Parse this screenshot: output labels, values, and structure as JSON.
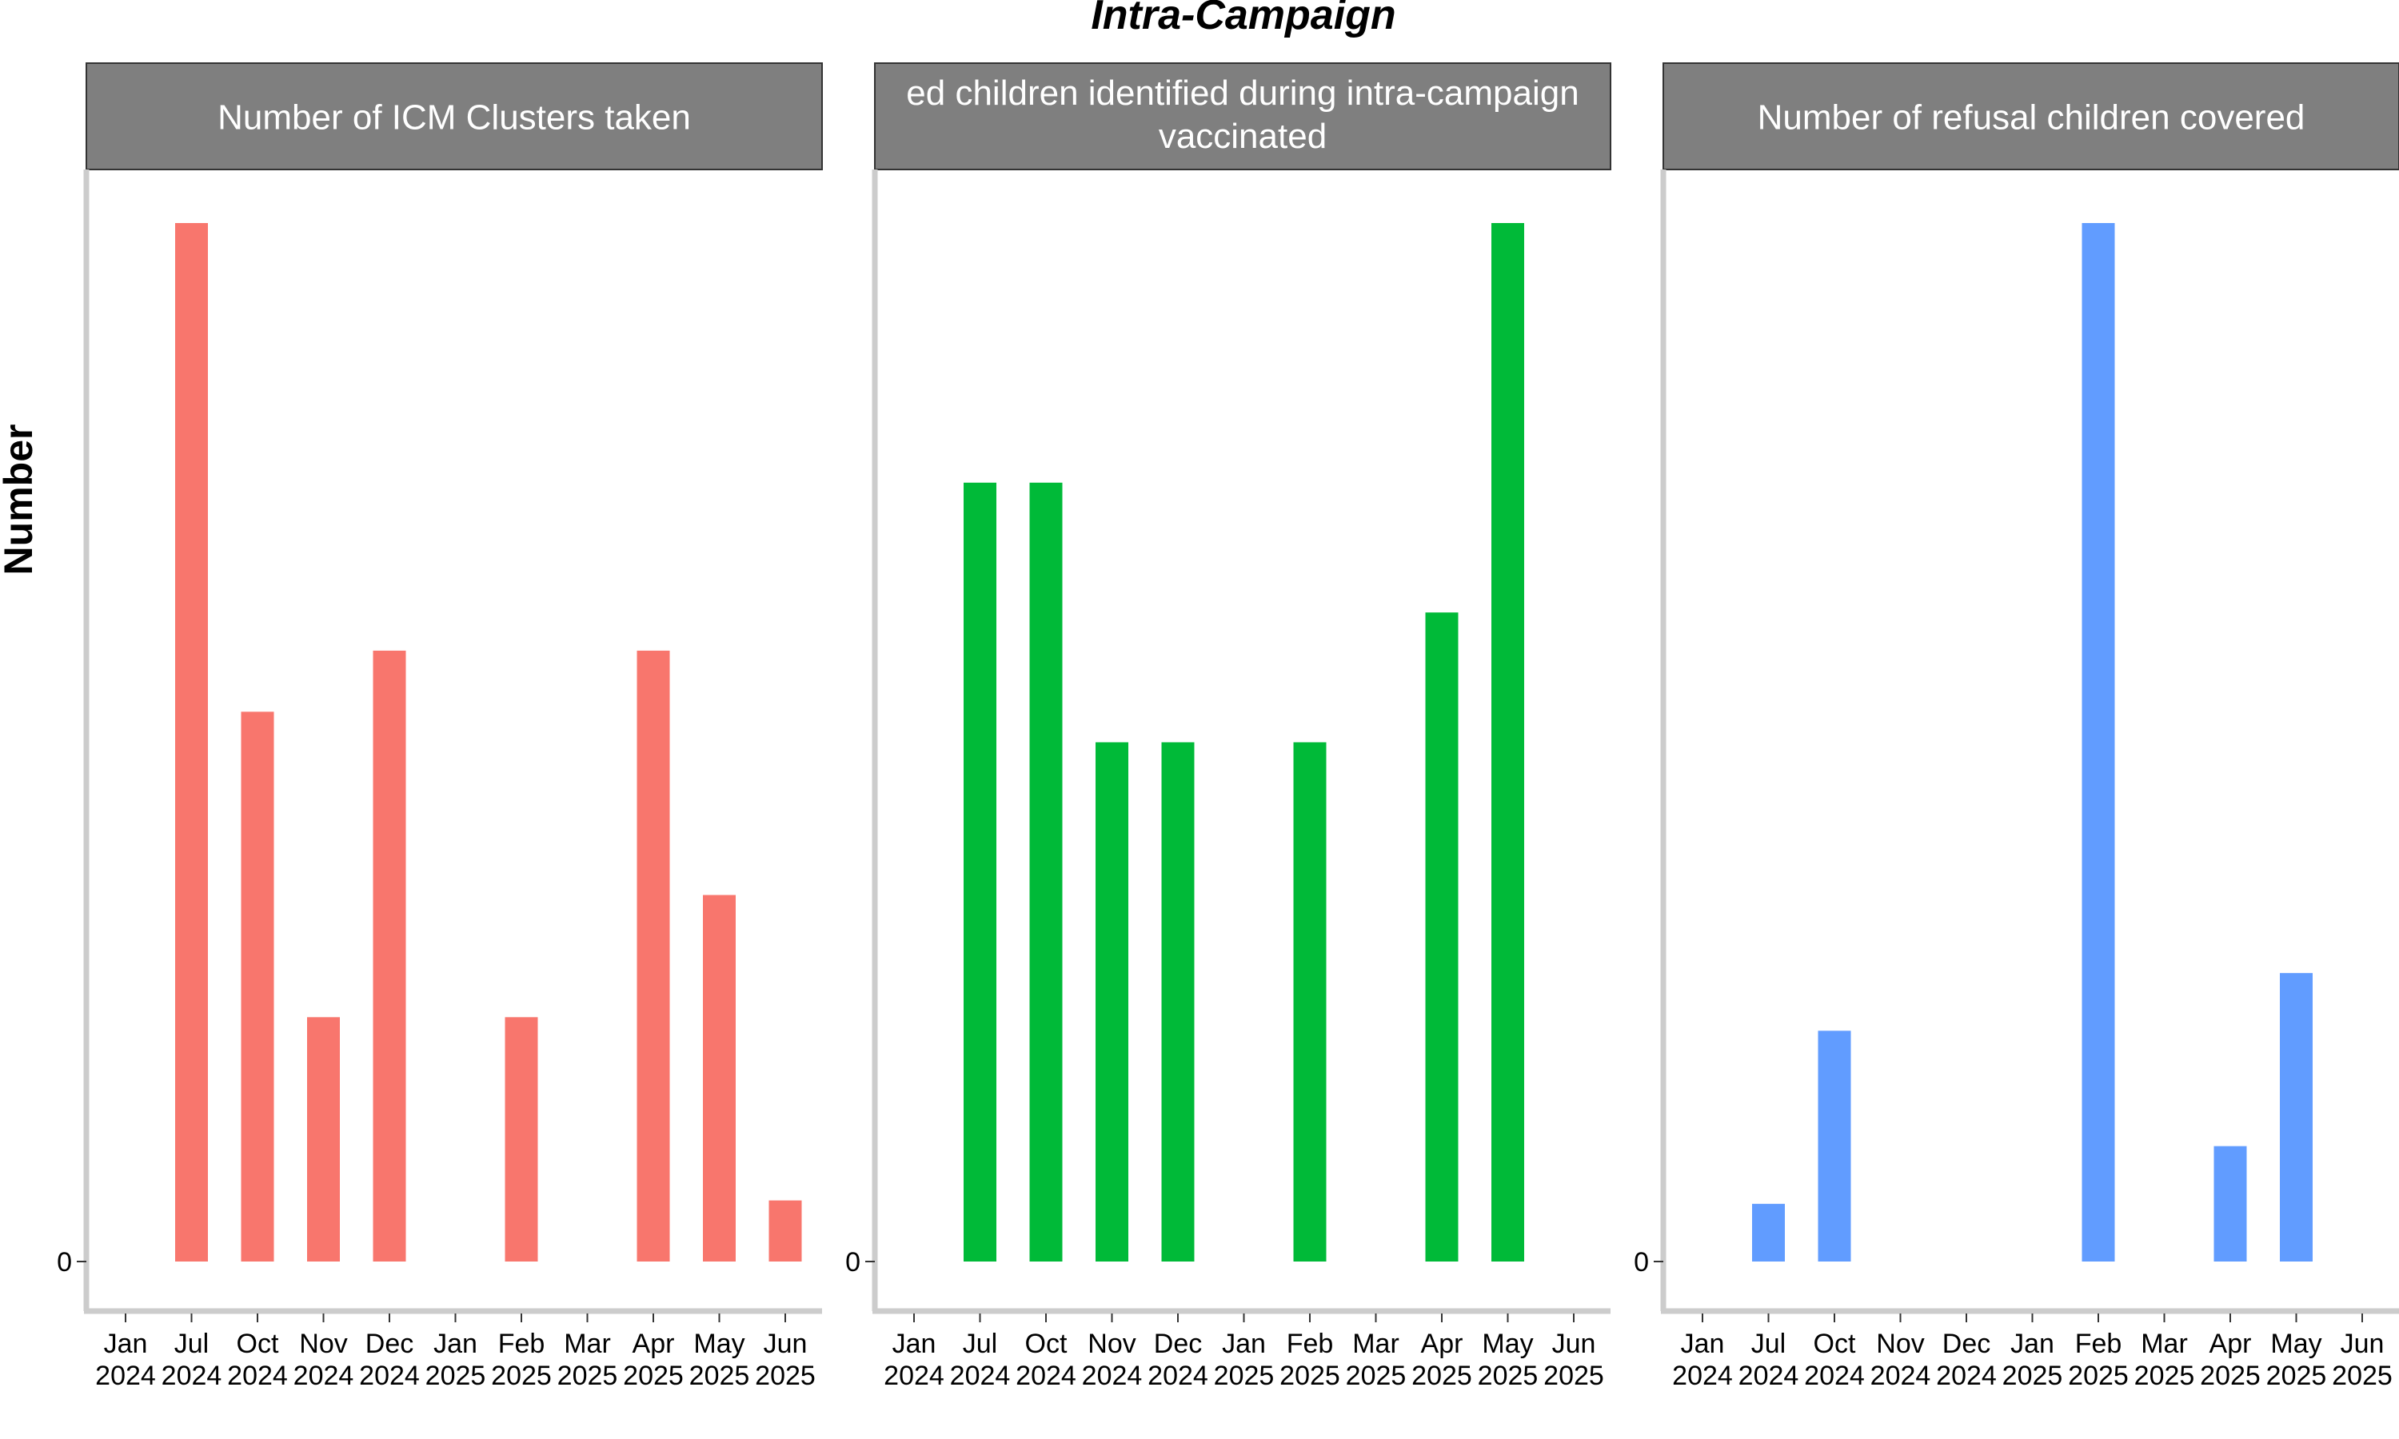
{
  "figure": {
    "title": "Intra-Campaign",
    "ylabel": "Number"
  },
  "colors": {
    "strip_fill": "#7f7f7f",
    "strip_text": "#ffffff",
    "axis": "#cccccc",
    "text": "#000000"
  },
  "chart_data": [
    {
      "type": "bar",
      "title": "Number of ICM Clusters taken",
      "color": "#F8766D",
      "x_ticks": [
        [
          "Jan",
          "2024"
        ],
        [
          "Jul",
          "2024"
        ],
        [
          "Oct",
          "2024"
        ],
        [
          "Nov",
          "2024"
        ],
        [
          "Dec",
          "2024"
        ],
        [
          "Jan",
          "2025"
        ],
        [
          "Feb",
          "2025"
        ],
        [
          "Mar",
          "2025"
        ],
        [
          "Apr",
          "2025"
        ],
        [
          "May",
          "2025"
        ],
        [
          "Jun",
          "2025"
        ]
      ],
      "y_ticks": [
        "0"
      ],
      "ylim": [
        0,
        170
      ],
      "values": [
        0,
        170,
        90,
        40,
        100,
        0,
        40,
        0,
        100,
        60,
        10
      ]
    },
    {
      "type": "bar",
      "title": "ed children identified during intra-campaign vaccinated",
      "title_lines": [
        "ed children identified during intra-campaign",
        "vaccinated"
      ],
      "color": "#00BA38",
      "x_ticks": [
        [
          "Jan",
          "2024"
        ],
        [
          "Jul",
          "2024"
        ],
        [
          "Oct",
          "2024"
        ],
        [
          "Nov",
          "2024"
        ],
        [
          "Dec",
          "2024"
        ],
        [
          "Jan",
          "2025"
        ],
        [
          "Feb",
          "2025"
        ],
        [
          "Mar",
          "2025"
        ],
        [
          "Apr",
          "2025"
        ],
        [
          "May",
          "2025"
        ],
        [
          "Jun",
          "2025"
        ]
      ],
      "y_ticks": [
        "0"
      ],
      "ylim": [
        0,
        8
      ],
      "values": [
        0,
        6,
        6,
        4,
        4,
        0,
        4,
        0,
        5,
        8,
        0
      ]
    },
    {
      "type": "bar",
      "title": "Number of refusal children covered",
      "color": "#619CFF",
      "x_ticks": [
        [
          "Jan",
          "2024"
        ],
        [
          "Jul",
          "2024"
        ],
        [
          "Oct",
          "2024"
        ],
        [
          "Nov",
          "2024"
        ],
        [
          "Dec",
          "2024"
        ],
        [
          "Jan",
          "2025"
        ],
        [
          "Feb",
          "2025"
        ],
        [
          "Mar",
          "2025"
        ],
        [
          "Apr",
          "2025"
        ],
        [
          "May",
          "2025"
        ],
        [
          "Jun",
          "2025"
        ]
      ],
      "y_ticks": [
        "0"
      ],
      "ylim": [
        0,
        18
      ],
      "values": [
        0,
        1,
        4,
        0,
        0,
        0,
        18,
        0,
        2,
        5,
        0
      ]
    }
  ]
}
